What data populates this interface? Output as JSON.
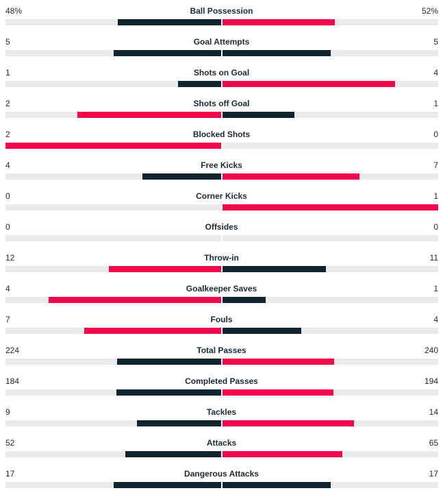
{
  "colors": {
    "dark": "#0f242e",
    "red": "#f2074a",
    "track": "#ebebeb",
    "text": "#1a2a33"
  },
  "stats": [
    {
      "label": "Ball Possession",
      "home": "48%",
      "away": "52%",
      "home_share": 0.48,
      "away_share": 0.52,
      "home_color": "dark",
      "away_color": "red"
    },
    {
      "label": "Goal Attempts",
      "home": "5",
      "away": "5",
      "home_share": 0.5,
      "away_share": 0.5,
      "home_color": "dark",
      "away_color": "dark"
    },
    {
      "label": "Shots on Goal",
      "home": "1",
      "away": "4",
      "home_share": 0.2,
      "away_share": 0.8,
      "home_color": "dark",
      "away_color": "red"
    },
    {
      "label": "Shots off Goal",
      "home": "2",
      "away": "1",
      "home_share": 0.667,
      "away_share": 0.333,
      "home_color": "red",
      "away_color": "dark"
    },
    {
      "label": "Blocked Shots",
      "home": "2",
      "away": "0",
      "home_share": 1.0,
      "away_share": 0.0,
      "home_color": "red",
      "away_color": "dark"
    },
    {
      "label": "Free Kicks",
      "home": "4",
      "away": "7",
      "home_share": 0.364,
      "away_share": 0.636,
      "home_color": "dark",
      "away_color": "red"
    },
    {
      "label": "Corner Kicks",
      "home": "0",
      "away": "1",
      "home_share": 0.0,
      "away_share": 1.0,
      "home_color": "dark",
      "away_color": "red"
    },
    {
      "label": "Offsides",
      "home": "0",
      "away": "0",
      "home_share": 0.0,
      "away_share": 0.0,
      "home_color": "dark",
      "away_color": "dark"
    },
    {
      "label": "Throw-in",
      "home": "12",
      "away": "11",
      "home_share": 0.522,
      "away_share": 0.478,
      "home_color": "red",
      "away_color": "dark"
    },
    {
      "label": "Goalkeeper Saves",
      "home": "4",
      "away": "1",
      "home_share": 0.8,
      "away_share": 0.2,
      "home_color": "red",
      "away_color": "dark"
    },
    {
      "label": "Fouls",
      "home": "7",
      "away": "4",
      "home_share": 0.636,
      "away_share": 0.364,
      "home_color": "red",
      "away_color": "dark"
    },
    {
      "label": "Total Passes",
      "home": "224",
      "away": "240",
      "home_share": 0.483,
      "away_share": 0.517,
      "home_color": "dark",
      "away_color": "red"
    },
    {
      "label": "Completed Passes",
      "home": "184",
      "away": "194",
      "home_share": 0.487,
      "away_share": 0.513,
      "home_color": "dark",
      "away_color": "red"
    },
    {
      "label": "Tackles",
      "home": "9",
      "away": "14",
      "home_share": 0.391,
      "away_share": 0.609,
      "home_color": "dark",
      "away_color": "red"
    },
    {
      "label": "Attacks",
      "home": "52",
      "away": "65",
      "home_share": 0.444,
      "away_share": 0.556,
      "home_color": "dark",
      "away_color": "red"
    },
    {
      "label": "Dangerous Attacks",
      "home": "17",
      "away": "17",
      "home_share": 0.5,
      "away_share": 0.5,
      "home_color": "dark",
      "away_color": "dark"
    }
  ]
}
